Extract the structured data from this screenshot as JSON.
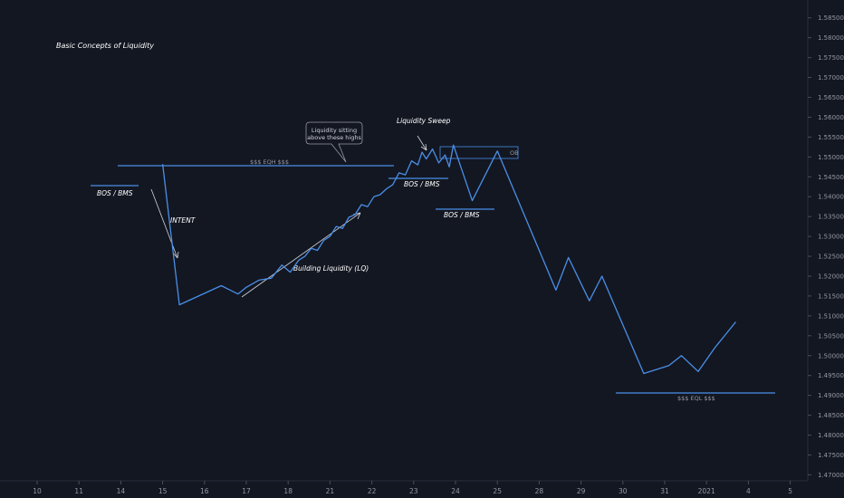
{
  "chart_data": {
    "type": "line",
    "title": "Basic Concepts of Liquidity",
    "price_axis": {
      "ticks": [
        "1.58500",
        "1.58000",
        "1.57500",
        "1.57000",
        "1.56500",
        "1.56000",
        "1.55500",
        "1.55000",
        "1.54500",
        "1.54000",
        "1.53500",
        "1.53000",
        "1.52500",
        "1.52000",
        "1.51500",
        "1.51000",
        "1.50500",
        "1.50000",
        "1.49500",
        "1.49000",
        "1.48500",
        "1.48000",
        "1.47500",
        "1.47000"
      ],
      "range": [
        1.4685,
        1.5895
      ]
    },
    "time_axis": {
      "ticks": [
        "10",
        "11",
        "14",
        "15",
        "16",
        "17",
        "18",
        "21",
        "22",
        "23",
        "24",
        "25",
        "28",
        "29",
        "30",
        "31",
        "2021",
        "4",
        "5"
      ]
    },
    "series": [
      {
        "color": "#4a8fe7",
        "x": [
          3.0,
          3.4,
          4.4,
          4.8,
          5.0,
          5.3,
          5.6,
          5.85,
          6.05,
          6.25,
          6.4,
          6.55,
          6.7,
          6.85,
          7.0,
          7.15,
          7.3,
          7.45,
          7.6,
          7.75,
          7.9,
          8.05,
          8.2,
          8.35,
          8.5,
          8.65,
          8.8,
          8.95,
          9.1,
          9.2,
          9.3,
          9.45,
          9.6,
          9.75,
          9.85,
          9.95,
          10.4,
          11.0,
          12.4,
          12.7,
          13.2,
          13.5,
          14.5,
          15.1,
          15.4,
          15.8,
          16.2,
          16.7
        ],
        "y": [
          1.5482,
          1.5128,
          1.5176,
          1.5155,
          1.5172,
          1.519,
          1.5195,
          1.5228,
          1.521,
          1.524,
          1.525,
          1.527,
          1.5265,
          1.529,
          1.53,
          1.5325,
          1.532,
          1.5348,
          1.5355,
          1.538,
          1.5375,
          1.54,
          1.5405,
          1.542,
          1.543,
          1.546,
          1.5455,
          1.549,
          1.548,
          1.5512,
          1.5495,
          1.552,
          1.5485,
          1.5505,
          1.5475,
          1.553,
          1.539,
          1.5515,
          1.5165,
          1.5247,
          1.5138,
          1.52,
          1.4955,
          1.4975,
          1.5,
          1.496,
          1.502,
          1.5085
        ]
      }
    ],
    "annotations": {
      "eqh_label": "$$$ EQH $$$",
      "eql_label": "$$$ EQL $$$",
      "bos_label": "BOS / BMS",
      "intent_label": "INTENT",
      "building_label": "Building Liquidity (LQ)",
      "sweep_label": "Liquidity Sweep",
      "callout_lines": [
        "Liquidity sitting",
        "above these highs"
      ],
      "ob_label": "OB"
    },
    "grid": false,
    "legend": "none",
    "background": "#131722",
    "line_color": "#4a8fe7"
  }
}
